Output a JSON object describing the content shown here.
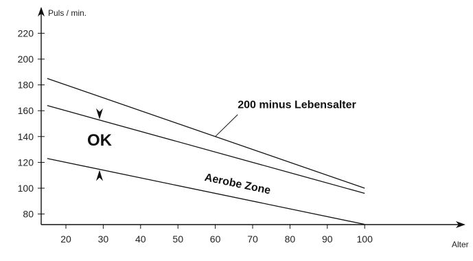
{
  "chart_data": {
    "type": "line",
    "xlabel": "Alter",
    "ylabel": "Puls / min.",
    "xlim": [
      15,
      100
    ],
    "ylim": [
      70,
      225
    ],
    "x_ticks": [
      20,
      30,
      40,
      50,
      60,
      70,
      80,
      90,
      100
    ],
    "y_ticks": [
      80,
      100,
      120,
      140,
      160,
      180,
      200,
      220
    ],
    "grid": false,
    "series": [
      {
        "name": "200 minus Lebensalter",
        "x": [
          15,
          100
        ],
        "y": [
          185,
          100
        ]
      },
      {
        "name": "",
        "x": [
          15,
          100
        ],
        "y": [
          164,
          96
        ]
      },
      {
        "name": "",
        "x": [
          15,
          100
        ],
        "y": [
          123,
          72
        ]
      }
    ],
    "annotations": {
      "zone_label": "Aerobe Zone",
      "ok_label": "OK"
    }
  }
}
